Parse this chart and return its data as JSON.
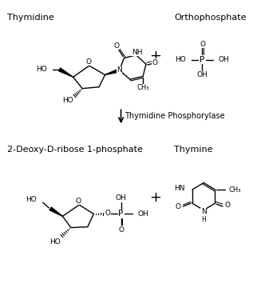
{
  "background_color": "#ffffff",
  "text_color": "#000000",
  "line_color": "#000000",
  "label_thymidine": "Thymidine",
  "label_orthophosphate": "Orthophosphate",
  "label_enzyme": "Thymidine Phosphorylase",
  "label_deoxyribose": "2-Deoxy-D-ribose 1-phosphate",
  "label_thymine": "Thymine",
  "font_size_labels": 8,
  "font_size_atoms": 6.5,
  "fig_width": 3.27,
  "fig_height": 3.6,
  "dpi": 100
}
